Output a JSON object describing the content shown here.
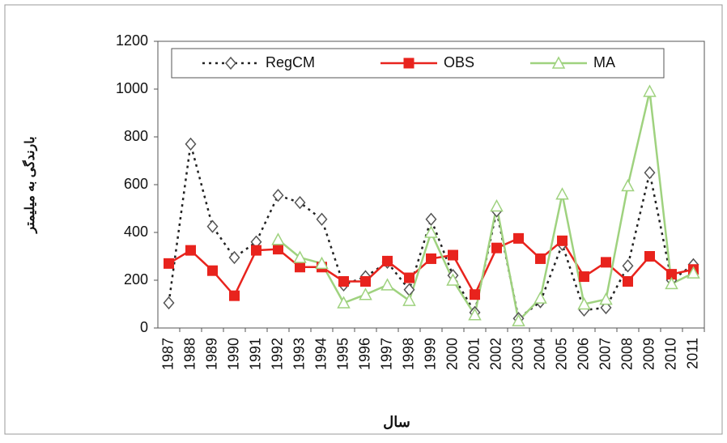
{
  "chart_data": {
    "type": "line",
    "x_label": "سال",
    "y_label": "بارندگی به میلیمتر",
    "categories": [
      "1987",
      "1988",
      "1989",
      "1990",
      "1991",
      "1992",
      "1993",
      "1994",
      "1995",
      "1996",
      "1997",
      "1998",
      "1999",
      "2000",
      "2001",
      "2002",
      "2003",
      "2004",
      "2005",
      "2006",
      "2007",
      "2008",
      "2009",
      "2010",
      "2011"
    ],
    "series": [
      {
        "name": "RegCM",
        "color": "#222222",
        "dash": "dotted",
        "marker": "diamond",
        "values": [
          105,
          770,
          425,
          295,
          360,
          555,
          525,
          455,
          180,
          215,
          275,
          160,
          455,
          220,
          65,
          490,
          40,
          110,
          350,
          75,
          85,
          260,
          650,
          200,
          265
        ]
      },
      {
        "name": "OBS",
        "color": "#e8231d",
        "dash": "solid",
        "marker": "square",
        "values": [
          270,
          325,
          240,
          135,
          325,
          330,
          255,
          255,
          195,
          195,
          280,
          210,
          290,
          305,
          140,
          335,
          375,
          290,
          365,
          215,
          275,
          195,
          300,
          225,
          245
        ]
      },
      {
        "name": "MA",
        "color": "#9fd27f",
        "dash": "solid",
        "marker": "triangle",
        "values": [
          null,
          null,
          null,
          null,
          null,
          370,
          295,
          270,
          105,
          140,
          180,
          115,
          400,
          200,
          55,
          510,
          30,
          125,
          560,
          100,
          120,
          595,
          990,
          185,
          230
        ]
      }
    ],
    "ylim": [
      0,
      1200
    ],
    "yticks": [
      0,
      200,
      400,
      600,
      800,
      1000,
      1200
    ],
    "grid": false,
    "legend": "top"
  }
}
